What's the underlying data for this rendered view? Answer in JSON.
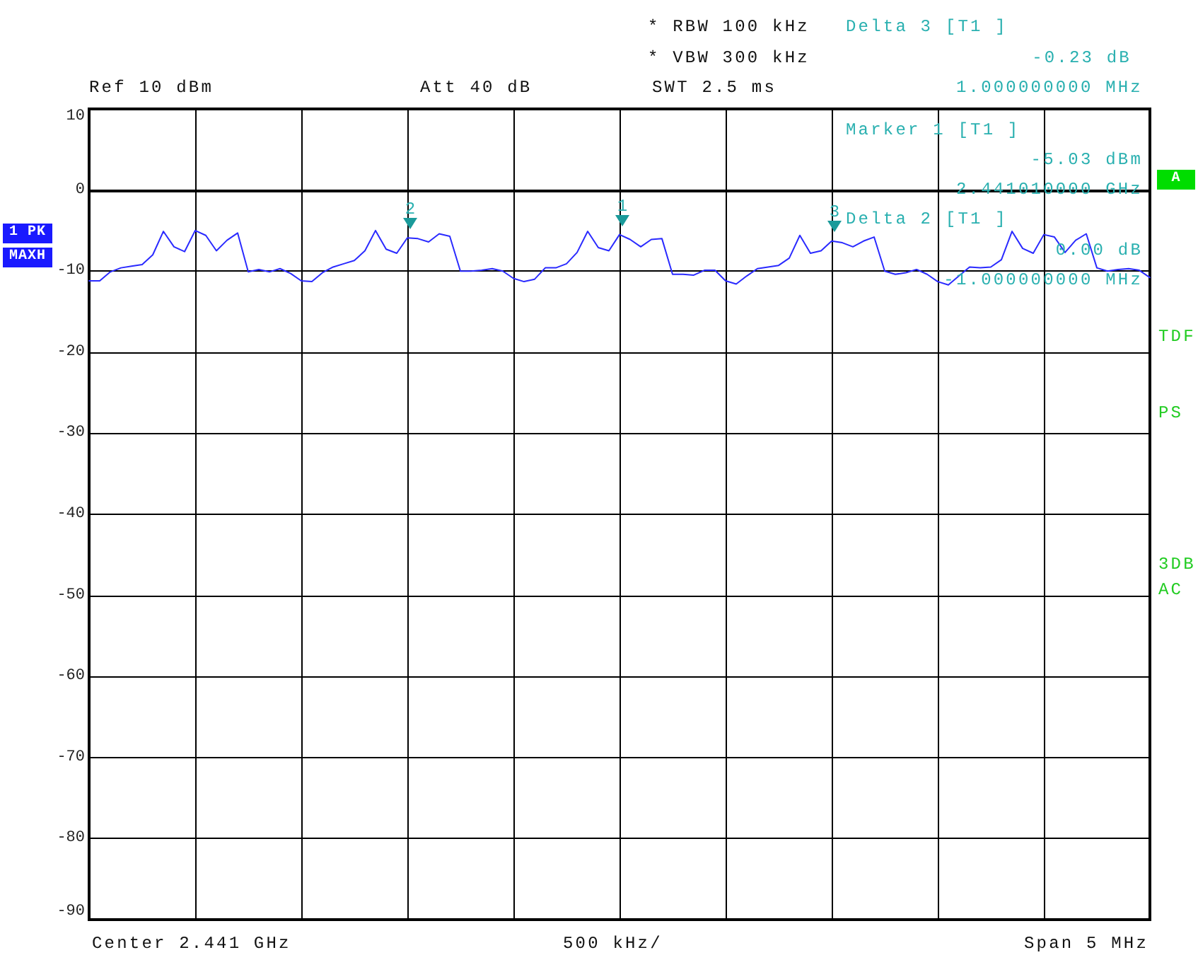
{
  "chart_data": {
    "type": "line",
    "categories": [
      null,
      null,
      null,
      null,
      null,
      null,
      null,
      null,
      null,
      null,
      null,
      null,
      null,
      null,
      null,
      null,
      null,
      null,
      null,
      null,
      null,
      null,
      null,
      null,
      null,
      null,
      null,
      null,
      null,
      null,
      null,
      null,
      null,
      null,
      null,
      null,
      null,
      null,
      null,
      null,
      null,
      null,
      null,
      null,
      null,
      null,
      null,
      null,
      null,
      null,
      null,
      null,
      null,
      null,
      null,
      null,
      null,
      null,
      null,
      null,
      null,
      null,
      null,
      null,
      null,
      null,
      null,
      null,
      null,
      null,
      null,
      null,
      null,
      null,
      null,
      null,
      null,
      null,
      null,
      null,
      null,
      null,
      null,
      null,
      null,
      null,
      null,
      null,
      null,
      null,
      null,
      null,
      null,
      null,
      null,
      null,
      null,
      null,
      null,
      null,
      null
    ],
    "series": [
      {
        "color": "#2a2aff",
        "values": [
          -11.2,
          -11.2,
          -10.1,
          -9.6,
          -9.4,
          -9.2,
          -8.0,
          -5.1,
          -7.0,
          -7.6,
          -5.0,
          -5.6,
          -7.5,
          -6.2,
          -5.3,
          -10.1,
          -9.8,
          -10.1,
          -9.7,
          -10.3,
          -11.2,
          -11.3,
          -10.2,
          -9.5,
          -9.1,
          -8.7,
          -7.5,
          -5.0,
          -7.3,
          -7.8,
          -5.9,
          -6.0,
          -6.4,
          -5.4,
          -5.7,
          -10.0,
          -10.0,
          -9.9,
          -9.7,
          -10.0,
          -10.9,
          -11.3,
          -11.0,
          -9.6,
          -9.6,
          -9.1,
          -7.7,
          -5.1,
          -7.1,
          -7.5,
          -5.5,
          -6.1,
          -7.0,
          -6.1,
          -6.0,
          -10.4,
          -10.4,
          -10.5,
          -9.9,
          -9.9,
          -11.2,
          -11.6,
          -10.6,
          -9.7,
          -9.5,
          -9.3,
          -8.4,
          -5.6,
          -7.8,
          -7.5,
          -6.3,
          -6.5,
          -7.0,
          -6.3,
          -5.8,
          -10.0,
          -10.4,
          -10.2,
          -9.8,
          -10.4,
          -11.3,
          -11.7,
          -10.6,
          -9.5,
          -9.6,
          -9.5,
          -8.6,
          -5.1,
          -7.2,
          -7.8,
          -5.5,
          -5.8,
          -7.7,
          -6.2,
          -5.4,
          -9.6,
          -10.0,
          -9.8,
          -9.7,
          -9.9,
          -10.8
        ]
      }
    ],
    "ylim": [
      -90,
      10
    ],
    "yticks": [
      -90,
      -80,
      -70,
      -60,
      -50,
      -40,
      -30,
      -20,
      -10,
      0,
      10
    ],
    "tick_labels": "y",
    "grid": true,
    "line_style": "solid",
    "annotations": [
      "* RBW 100 kHz",
      "* VBW 300 kHz",
      "Delta 3 [T1 ]",
      "-0.23 dB",
      "1.000000000 MHz",
      "Ref 10 dBm",
      "Att 40 dB",
      "SWT 2.5 ms",
      "Marker 1 [T1 ]",
      "-5.03 dBm",
      "2.441010000 GHz",
      "Delta 2 [T1 ]",
      "0.00 dB",
      "-1.000000000 MHz",
      "1 PK",
      "MAXH",
      "A",
      "TDF",
      "PS",
      "3DB",
      "AC",
      "Center 2.441 GHz",
      "500 kHz/",
      "Span 5 MHz",
      "1",
      "2",
      "3"
    ]
  }
}
